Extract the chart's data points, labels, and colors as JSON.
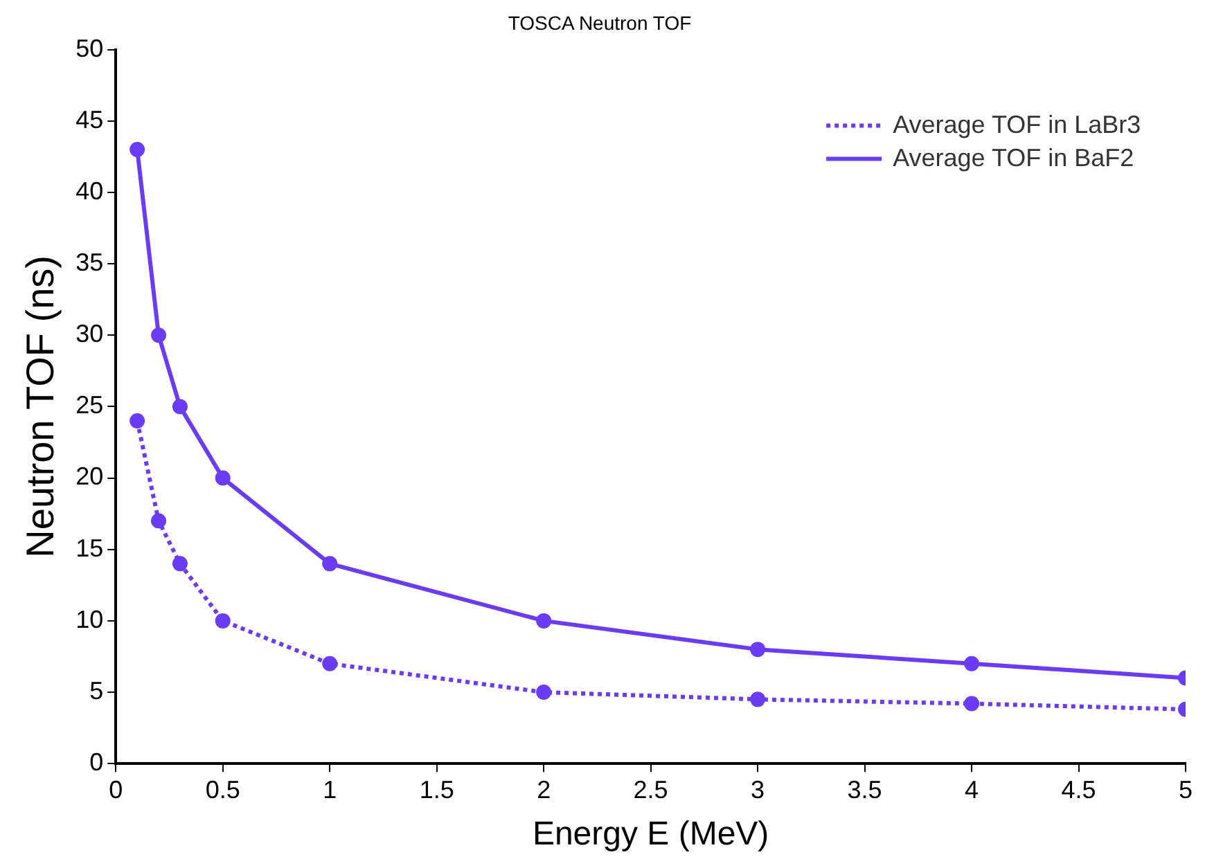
{
  "chart_data": {
    "type": "line",
    "title": "TOSCA Neutron TOF",
    "xlabel": "Energy E (MeV)",
    "ylabel": "Neutron TOF (ns)",
    "x": [
      0.1,
      0.2,
      0.3,
      0.5,
      1,
      2,
      3,
      4,
      5
    ],
    "series": [
      {
        "name": "Average TOF in LaBr3",
        "color": "#6a3cf5",
        "line_style": "dotted",
        "values": [
          24,
          17,
          14,
          10,
          7,
          5,
          4.5,
          4.2,
          3.8
        ]
      },
      {
        "name": "Average TOF in BaF2",
        "color": "#6a3cf5",
        "line_style": "solid",
        "values": [
          43,
          30,
          25,
          20,
          14,
          10,
          8,
          7,
          6
        ]
      }
    ],
    "xlim": [
      0,
      5
    ],
    "xticks": [
      0,
      0.5,
      1,
      1.5,
      2,
      2.5,
      3,
      3.5,
      4,
      4.5,
      5
    ],
    "ylim": [
      0,
      50
    ],
    "yticks": [
      0,
      5,
      10,
      15,
      20,
      25,
      30,
      35,
      40,
      45,
      50
    ],
    "grid": false,
    "legend": "top right",
    "marker": "circle"
  }
}
